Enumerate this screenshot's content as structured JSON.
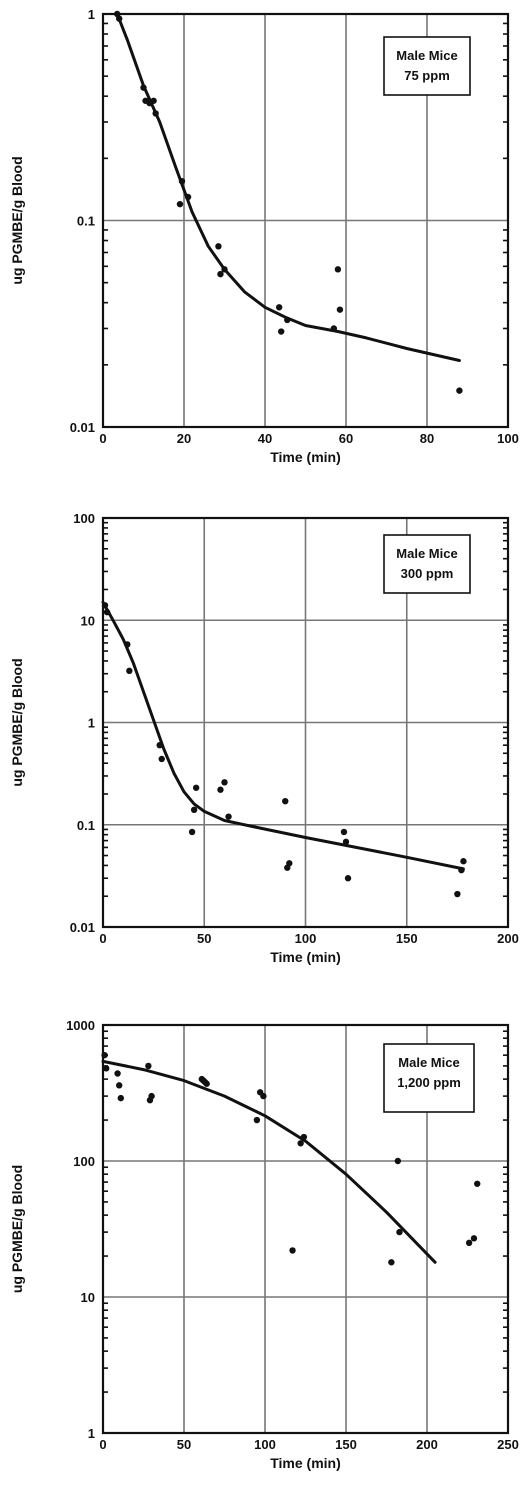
{
  "chart_data": [
    {
      "type": "scatter",
      "xlabel": "Time (min)",
      "ylabel": "ug PGMBE/g Blood",
      "legend": [
        "Male Mice",
        "75 ppm"
      ],
      "legend_position": "top-right",
      "grid": true,
      "yscale": "log",
      "xlim": [
        0,
        100
      ],
      "ylim": [
        0.01,
        1
      ],
      "xticks": [
        0,
        20,
        40,
        60,
        80,
        100
      ],
      "xtick_labels": [
        "0",
        "20",
        "40",
        "60",
        "80",
        "100"
      ],
      "yticks": [
        0.01,
        0.1,
        1
      ],
      "ytick_labels": [
        "0.01",
        "0.1",
        "1"
      ],
      "series": [
        {
          "type": "scatter",
          "x": [
            3.5,
            4,
            10,
            10.5,
            11.5,
            12.5,
            13,
            19,
            19.5,
            21,
            28.5,
            29,
            30,
            43.5,
            44,
            45.5,
            57,
            58,
            58.5,
            88
          ],
          "y": [
            1.0,
            0.95,
            0.44,
            0.38,
            0.37,
            0.38,
            0.33,
            0.12,
            0.155,
            0.13,
            0.075,
            0.055,
            0.058,
            0.038,
            0.029,
            0.033,
            0.03,
            0.058,
            0.037,
            0.015
          ]
        },
        {
          "type": "line",
          "x": [
            3.5,
            6,
            10,
            14,
            18,
            22,
            26,
            30,
            35,
            40,
            45,
            50,
            58,
            65,
            75,
            88
          ],
          "y": [
            1.0,
            0.75,
            0.45,
            0.3,
            0.18,
            0.11,
            0.075,
            0.058,
            0.045,
            0.038,
            0.034,
            0.031,
            0.029,
            0.027,
            0.024,
            0.021
          ]
        }
      ]
    },
    {
      "type": "scatter",
      "xlabel": "Time (min)",
      "ylabel": "ug PGMBE/g Blood",
      "legend": [
        "Male Mice",
        "300 ppm"
      ],
      "legend_position": "top-right",
      "grid": true,
      "yscale": "log",
      "xlim": [
        0,
        200
      ],
      "ylim": [
        0.01,
        100
      ],
      "xticks": [
        0,
        50,
        100,
        150,
        200
      ],
      "xtick_labels": [
        "0",
        "50",
        "100",
        "150",
        "200"
      ],
      "yticks": [
        0.01,
        0.1,
        1,
        10,
        100
      ],
      "ytick_labels": [
        "0.01",
        "0.1",
        "1",
        "10",
        "100"
      ],
      "series": [
        {
          "type": "scatter",
          "x": [
            1,
            2,
            12,
            13,
            28,
            29,
            44,
            45,
            46,
            58,
            60,
            62,
            90,
            91,
            92,
            119,
            120,
            121,
            175,
            177,
            178
          ],
          "y": [
            14,
            12,
            5.8,
            3.2,
            0.6,
            0.44,
            0.085,
            0.14,
            0.23,
            0.22,
            0.26,
            0.12,
            0.17,
            0.038,
            0.042,
            0.085,
            0.068,
            0.03,
            0.021,
            0.036,
            0.044
          ]
        },
        {
          "type": "line",
          "x": [
            0,
            5,
            10,
            15,
            20,
            25,
            30,
            35,
            40,
            45,
            50,
            60,
            75,
            100,
            125,
            150,
            178
          ],
          "y": [
            15,
            10,
            6.5,
            3.8,
            2,
            1.05,
            0.55,
            0.32,
            0.21,
            0.16,
            0.135,
            0.11,
            0.095,
            0.075,
            0.06,
            0.048,
            0.037
          ]
        }
      ]
    },
    {
      "type": "scatter",
      "xlabel": "Time (min)",
      "ylabel": "ug PGMBE/g Blood",
      "legend": [
        "Male Mice",
        "1,200 ppm"
      ],
      "legend_position": "top-right",
      "grid": true,
      "yscale": "log",
      "xlim": [
        0,
        250
      ],
      "ylim": [
        1,
        1000
      ],
      "xticks": [
        0,
        50,
        100,
        150,
        200,
        250
      ],
      "xtick_labels": [
        "0",
        "50",
        "100",
        "150",
        "200",
        "250"
      ],
      "yticks": [
        1,
        10,
        100,
        1000
      ],
      "ytick_labels": [
        "1",
        "10",
        "100",
        "1000"
      ],
      "series": [
        {
          "type": "scatter",
          "x": [
            1,
            2,
            9,
            10,
            11,
            28,
            29,
            30,
            61,
            62,
            63,
            64,
            95,
            97,
            99,
            117,
            122,
            124,
            178,
            182,
            183,
            226,
            229,
            231
          ],
          "y": [
            600,
            480,
            440,
            360,
            290,
            500,
            280,
            300,
            400,
            390,
            380,
            370,
            200,
            320,
            300,
            22,
            135,
            150,
            18,
            100,
            30,
            25,
            27,
            68
          ]
        },
        {
          "type": "line",
          "x": [
            0,
            25,
            50,
            75,
            100,
            125,
            150,
            175,
            205
          ],
          "y": [
            540,
            470,
            390,
            300,
            215,
            140,
            80,
            42,
            18
          ]
        }
      ]
    }
  ]
}
